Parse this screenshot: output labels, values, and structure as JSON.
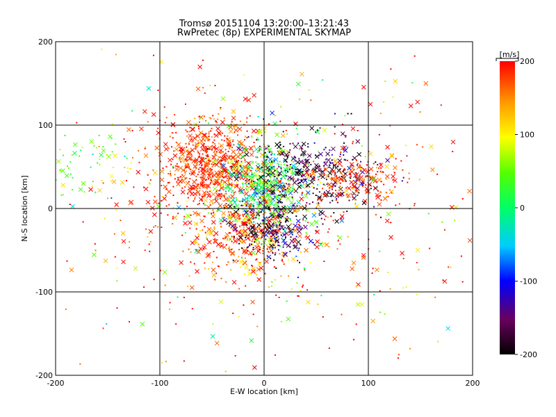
{
  "chart_data": {
    "type": "scatter",
    "title": "Tromsø 20151104 13:20:00–13:21:43",
    "subtitle": "RwPretec (8p) EXPERIMENTAL SKYMAP",
    "xlabel": "E-W location [km]",
    "ylabel": "N-S location [km]",
    "xlim": [
      -200,
      200
    ],
    "ylim": [
      -200,
      200
    ],
    "xticks": [
      "-200",
      "-100",
      "0",
      "100",
      "200"
    ],
    "yticks": [
      "-200",
      "-100",
      "0",
      "100",
      "200"
    ],
    "grid": true,
    "colorbar": {
      "label": "[m/s]",
      "range": [
        -200,
        200
      ],
      "ticks": [
        "-200",
        "-100",
        "0",
        "100",
        "200"
      ],
      "colormap": "rainbow (black-purple-blue-cyan-green-yellow-orange-red)"
    },
    "markers": {
      "small_symbol": "dot",
      "large_symbol": "x"
    },
    "point_distribution": {
      "note": "several thousand points; dense cluster centred near (-20, 30) km, red (+velocity) points dominate west side, green/cyan near center, black (negative) points on east side",
      "clusters": [
        {
          "cx": -50,
          "cy": 50,
          "sx": 25,
          "sy": 30,
          "n": 700,
          "vmean": 185,
          "vsd": 25
        },
        {
          "cx": 0,
          "cy": 25,
          "sx": 20,
          "sy": 25,
          "n": 600,
          "vmean": 20,
          "vsd": 60
        },
        {
          "cx": 45,
          "cy": 40,
          "sx": 35,
          "sy": 25,
          "n": 350,
          "vmean": -170,
          "vsd": 40
        },
        {
          "cx": -15,
          "cy": -30,
          "sx": 30,
          "sy": 25,
          "n": 350,
          "vmean": 170,
          "vsd": 40
        },
        {
          "cx": 10,
          "cy": -25,
          "sx": 20,
          "sy": 20,
          "n": 200,
          "vmean": -160,
          "vsd": 50
        },
        {
          "cx": 90,
          "cy": 35,
          "sx": 25,
          "sy": 15,
          "n": 180,
          "vmean": 180,
          "vsd": 30
        },
        {
          "cx": -170,
          "cy": 50,
          "sx": 25,
          "sy": 20,
          "n": 70,
          "vmean": 60,
          "vsd": 40
        },
        {
          "cx": 0,
          "cy": 0,
          "sx": 110,
          "sy": 90,
          "n": 500,
          "vmean": 160,
          "vsd": 90
        }
      ]
    }
  }
}
